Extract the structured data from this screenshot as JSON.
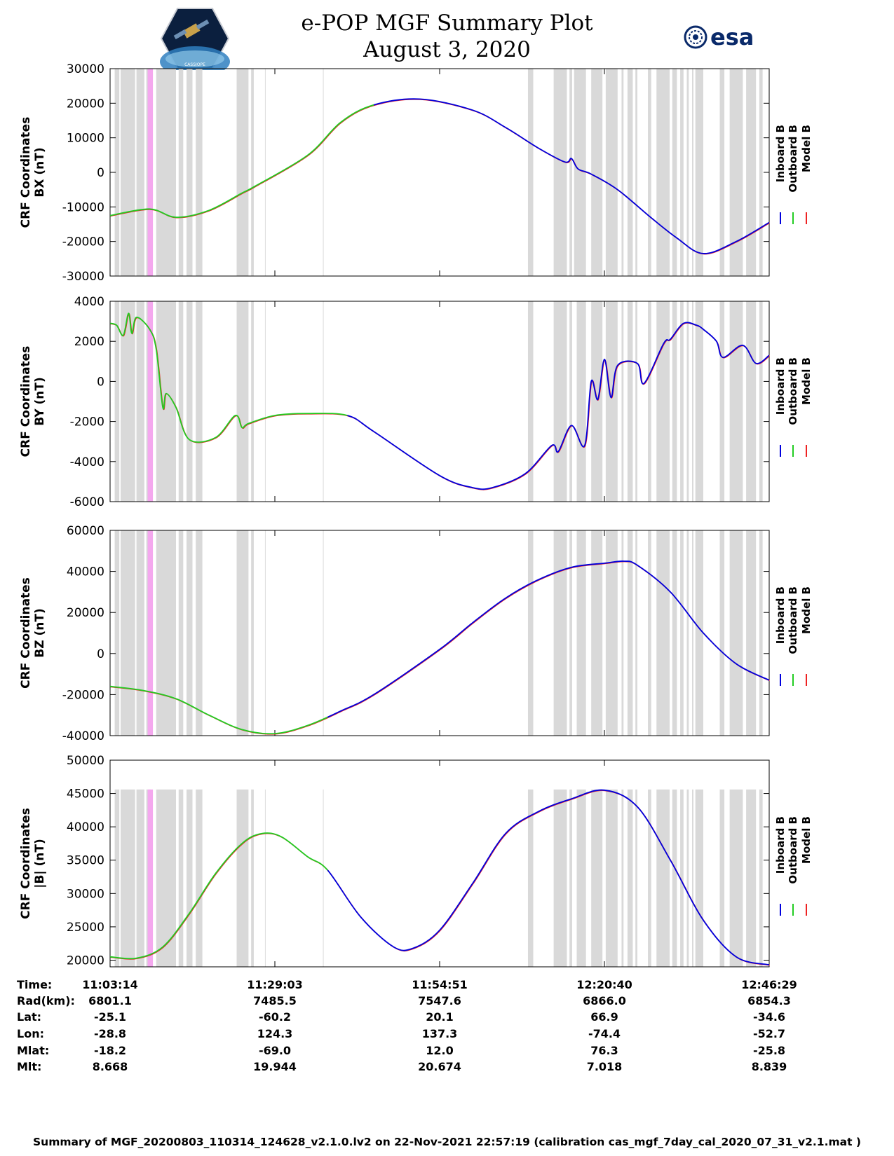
{
  "header": {
    "title": "e-POP MGF Summary Plot",
    "subtitle": "August 3, 2020",
    "left_logo": "CASSIOPE",
    "right_logo": "esa"
  },
  "footer": "Summary of MGF_20200803_110314_124628_v2.1.0.lv2 on 22-Nov-2021 22:57:19 (calibration cas_mgf_7day_cal_2020_07_31_v2.1.mat )",
  "colors": {
    "inboard": "#0000dd",
    "outboard": "#22cc22",
    "model": "#ee2222",
    "gap": "#d9d9d9",
    "highlight": "#f4a8ee"
  },
  "legend": [
    "Inboard B",
    "Outboard B",
    "Model B"
  ],
  "ephemeris": {
    "labels": [
      "Time:",
      "Rad(km):",
      "Lat:",
      "Lon:",
      "Mlat:",
      "Mlt:"
    ],
    "columns": [
      [
        "11:03:14",
        "6801.1",
        "-25.1",
        "-28.8",
        "-18.2",
        "8.668"
      ],
      [
        "11:29:03",
        "7485.5",
        "-60.2",
        "124.3",
        "-69.0",
        "19.944"
      ],
      [
        "11:54:51",
        "7547.6",
        "20.1",
        "137.3",
        "12.0",
        "20.674"
      ],
      [
        "12:20:40",
        "6866.0",
        "66.9",
        "-74.4",
        "76.3",
        "7.018"
      ],
      [
        "12:46:29",
        "6854.3",
        "-34.6",
        "-52.7",
        "-25.8",
        "8.839"
      ]
    ]
  },
  "chart_data": [
    {
      "type": "line",
      "ylabel": [
        "CRF Coordinates",
        "BX (nT)"
      ],
      "xlim": [
        0,
        1
      ],
      "ylim": [
        -30000,
        30000
      ],
      "yticks": [
        -30000,
        -20000,
        -10000,
        0,
        10000,
        20000,
        30000
      ],
      "x_tick_labels": [
        "11:03:14",
        "11:29:03",
        "11:54:51",
        "12:20:40",
        "12:46:29"
      ],
      "green_end": 0.4,
      "series": [
        {
          "name": "Inboard B",
          "x": [
            0,
            0.06,
            0.1,
            0.15,
            0.2,
            0.22,
            0.3,
            0.35,
            0.4,
            0.47,
            0.55,
            0.6,
            0.65,
            0.69,
            0.7,
            0.71,
            0.73,
            0.77,
            0.82,
            0.86,
            0.9,
            0.95,
            1.0
          ],
          "y": [
            -12500,
            -10600,
            -13000,
            -11000,
            -6000,
            -4000,
            5000,
            14500,
            19500,
            21200,
            18000,
            13000,
            7000,
            3000,
            4000,
            1000,
            -500,
            -5000,
            -13000,
            -19000,
            -23500,
            -20000,
            -14500
          ]
        },
        {
          "name": "Model B",
          "x": [
            0,
            0.5,
            1.0
          ],
          "y": [
            -12500,
            21000,
            -14500
          ]
        }
      ],
      "gaps": [
        [
          0.007,
          0.014
        ],
        [
          0.016,
          0.038
        ],
        [
          0.04,
          0.052
        ],
        [
          0.055,
          0.062
        ],
        [
          0.07,
          0.1
        ],
        [
          0.104,
          0.111
        ],
        [
          0.116,
          0.125
        ],
        [
          0.13,
          0.14
        ],
        [
          0.192,
          0.21
        ],
        [
          0.214,
          0.218
        ],
        [
          0.235,
          0.236
        ],
        [
          0.323,
          0.324
        ],
        [
          0.634,
          0.642
        ],
        [
          0.673,
          0.693
        ],
        [
          0.697,
          0.701
        ],
        [
          0.705,
          0.7
        ],
        [
          0.705,
          0.71
        ],
        [
          0.704,
          0.706
        ],
        [
          0.708,
          0.722
        ],
        [
          0.73,
          0.747
        ],
        [
          0.752,
          0.77
        ],
        [
          0.776,
          0.779
        ],
        [
          0.785,
          0.793
        ],
        [
          0.797,
          0.8
        ],
        [
          0.816,
          0.821
        ],
        [
          0.829,
          0.849
        ],
        [
          0.853,
          0.86
        ],
        [
          0.865,
          0.87
        ],
        [
          0.875,
          0.878
        ],
        [
          0.883,
          0.885
        ],
        [
          0.888,
          0.9
        ],
        [
          0.925,
          0.932
        ],
        [
          0.94,
          0.96
        ],
        [
          0.965,
          0.98
        ],
        [
          0.985,
          0.99
        ]
      ],
      "highlights": [
        [
          0.057,
          0.065
        ]
      ]
    },
    {
      "type": "line",
      "ylabel": [
        "CRF Coordinates",
        "BY (nT)"
      ],
      "xlim": [
        0,
        1
      ],
      "ylim": [
        -6000,
        4000
      ],
      "yticks": [
        -6000,
        -4000,
        -2000,
        0,
        2000,
        4000
      ],
      "x_tick_labels": [
        "11:03:14",
        "11:29:03",
        "11:54:51",
        "12:20:40",
        "12:46:29"
      ],
      "green_end": 0.36,
      "series": [
        {
          "name": "Inboard B",
          "x": [
            0,
            0.01,
            0.02,
            0.028,
            0.033,
            0.04,
            0.06,
            0.07,
            0.08,
            0.085,
            0.1,
            0.12,
            0.16,
            0.19,
            0.2,
            0.21,
            0.25,
            0.3,
            0.36,
            0.4,
            0.5,
            0.55,
            0.58,
            0.63,
            0.67,
            0.68,
            0.7,
            0.72,
            0.73,
            0.74,
            0.75,
            0.76,
            0.77,
            0.8,
            0.81,
            0.84,
            0.85,
            0.87,
            0.89,
            0.9,
            0.92,
            0.93,
            0.96,
            0.98,
            1.0
          ],
          "y": [
            2900,
            2800,
            2300,
            3400,
            2400,
            3200,
            2600,
            1600,
            -1300,
            -600,
            -1300,
            -2900,
            -2800,
            -1700,
            -2300,
            -2100,
            -1700,
            -1600,
            -1700,
            -2500,
            -4700,
            -5300,
            -5300,
            -4600,
            -3200,
            -3500,
            -2200,
            -3200,
            0,
            -900,
            1100,
            -800,
            800,
            900,
            -100,
            1900,
            2100,
            2900,
            2800,
            2600,
            2000,
            1200,
            1800,
            900,
            1300
          ]
        },
        {
          "name": "Model B",
          "x": [
            0,
            0.5,
            1.0
          ],
          "y": [
            2900,
            -4700,
            1300
          ]
        }
      ],
      "gaps": [
        [
          0.007,
          0.014
        ],
        [
          0.016,
          0.038
        ],
        [
          0.04,
          0.052
        ],
        [
          0.055,
          0.062
        ],
        [
          0.07,
          0.1
        ],
        [
          0.104,
          0.111
        ],
        [
          0.116,
          0.125
        ],
        [
          0.13,
          0.14
        ],
        [
          0.192,
          0.21
        ],
        [
          0.214,
          0.218
        ],
        [
          0.235,
          0.236
        ],
        [
          0.323,
          0.324
        ],
        [
          0.634,
          0.642
        ],
        [
          0.673,
          0.693
        ],
        [
          0.697,
          0.701
        ],
        [
          0.708,
          0.722
        ],
        [
          0.73,
          0.747
        ],
        [
          0.752,
          0.77
        ],
        [
          0.776,
          0.779
        ],
        [
          0.785,
          0.793
        ],
        [
          0.797,
          0.8
        ],
        [
          0.816,
          0.821
        ],
        [
          0.829,
          0.849
        ],
        [
          0.853,
          0.86
        ],
        [
          0.865,
          0.87
        ],
        [
          0.875,
          0.878
        ],
        [
          0.883,
          0.885
        ],
        [
          0.888,
          0.9
        ],
        [
          0.925,
          0.932
        ],
        [
          0.94,
          0.96
        ],
        [
          0.965,
          0.98
        ],
        [
          0.985,
          0.99
        ]
      ],
      "highlights": [
        [
          0.057,
          0.065
        ]
      ]
    },
    {
      "type": "line",
      "ylabel": [
        "CRF Coordinates",
        "BZ (nT)"
      ],
      "xlim": [
        0,
        1
      ],
      "ylim": [
        -40000,
        60000
      ],
      "yticks": [
        -40000,
        -20000,
        0,
        20000,
        40000,
        60000
      ],
      "x_tick_labels": [
        "11:03:14",
        "11:29:03",
        "11:54:51",
        "12:20:40",
        "12:46:29"
      ],
      "green_end": 0.33,
      "series": [
        {
          "name": "Inboard B",
          "x": [
            0,
            0.05,
            0.1,
            0.15,
            0.2,
            0.25,
            0.3,
            0.35,
            0.4,
            0.5,
            0.55,
            0.6,
            0.65,
            0.7,
            0.75,
            0.78,
            0.8,
            0.85,
            0.9,
            0.95,
            1.0
          ],
          "y": [
            -16000,
            -18000,
            -22000,
            -30000,
            -37000,
            -39000,
            -35000,
            -28000,
            -20000,
            2000,
            15000,
            27000,
            36000,
            42000,
            44000,
            45000,
            43000,
            30000,
            10000,
            -5000,
            -13000
          ]
        },
        {
          "name": "Model B",
          "x": [
            0,
            0.5,
            1.0
          ],
          "y": [
            -16000,
            2000,
            -13000
          ]
        }
      ],
      "gaps": [
        [
          0.007,
          0.014
        ],
        [
          0.016,
          0.038
        ],
        [
          0.04,
          0.052
        ],
        [
          0.055,
          0.062
        ],
        [
          0.07,
          0.1
        ],
        [
          0.104,
          0.111
        ],
        [
          0.116,
          0.125
        ],
        [
          0.13,
          0.14
        ],
        [
          0.192,
          0.21
        ],
        [
          0.214,
          0.218
        ],
        [
          0.235,
          0.236
        ],
        [
          0.323,
          0.324
        ],
        [
          0.634,
          0.642
        ],
        [
          0.673,
          0.693
        ],
        [
          0.697,
          0.701
        ],
        [
          0.708,
          0.722
        ],
        [
          0.73,
          0.747
        ],
        [
          0.752,
          0.77
        ],
        [
          0.776,
          0.779
        ],
        [
          0.785,
          0.793
        ],
        [
          0.797,
          0.8
        ],
        [
          0.816,
          0.821
        ],
        [
          0.829,
          0.849
        ],
        [
          0.853,
          0.86
        ],
        [
          0.865,
          0.87
        ],
        [
          0.875,
          0.878
        ],
        [
          0.883,
          0.885
        ],
        [
          0.888,
          0.9
        ],
        [
          0.925,
          0.932
        ],
        [
          0.94,
          0.96
        ],
        [
          0.965,
          0.98
        ],
        [
          0.985,
          0.99
        ]
      ],
      "highlights": [
        [
          0.057,
          0.065
        ]
      ]
    },
    {
      "type": "line",
      "ylabel": [
        "CRF Coordinates",
        "|B| (nT)"
      ],
      "xlim": [
        0,
        1
      ],
      "ylim": [
        19000,
        50000
      ],
      "yticks": [
        20000,
        25000,
        30000,
        35000,
        40000,
        45000,
        50000
      ],
      "x_tick_labels": [
        "11:03:14",
        "11:29:03",
        "11:54:51",
        "12:20:40",
        "12:46:29"
      ],
      "green_end": 0.33,
      "series": [
        {
          "name": "Inboard B",
          "x": [
            0,
            0.04,
            0.08,
            0.12,
            0.16,
            0.2,
            0.23,
            0.26,
            0.3,
            0.33,
            0.38,
            0.43,
            0.46,
            0.5,
            0.55,
            0.6,
            0.65,
            0.7,
            0.75,
            0.8,
            0.85,
            0.9,
            0.95,
            1.0
          ],
          "y": [
            20500,
            20300,
            22000,
            27000,
            33000,
            37500,
            39000,
            38500,
            35500,
            33500,
            26500,
            22000,
            21800,
            24500,
            31500,
            39000,
            42300,
            44200,
            45500,
            43000,
            35000,
            26000,
            20500,
            19300
          ]
        },
        {
          "name": "Model B",
          "x": [
            0,
            0.5,
            1.0
          ],
          "y": [
            20500,
            24500,
            19300
          ]
        }
      ],
      "gaps": [
        [
          0.007,
          0.014
        ],
        [
          0.016,
          0.038
        ],
        [
          0.04,
          0.052
        ],
        [
          0.055,
          0.062
        ],
        [
          0.07,
          0.1
        ],
        [
          0.104,
          0.111
        ],
        [
          0.116,
          0.125
        ],
        [
          0.13,
          0.14
        ],
        [
          0.192,
          0.21
        ],
        [
          0.214,
          0.218
        ],
        [
          0.235,
          0.236
        ],
        [
          0.323,
          0.324
        ],
        [
          0.634,
          0.642
        ],
        [
          0.673,
          0.693
        ],
        [
          0.697,
          0.701
        ],
        [
          0.708,
          0.722
        ],
        [
          0.73,
          0.747
        ],
        [
          0.752,
          0.77
        ],
        [
          0.776,
          0.779
        ],
        [
          0.785,
          0.793
        ],
        [
          0.797,
          0.8
        ],
        [
          0.816,
          0.821
        ],
        [
          0.829,
          0.849
        ],
        [
          0.853,
          0.86
        ],
        [
          0.865,
          0.87
        ],
        [
          0.875,
          0.878
        ],
        [
          0.883,
          0.885
        ],
        [
          0.888,
          0.9
        ],
        [
          0.925,
          0.932
        ],
        [
          0.94,
          0.96
        ],
        [
          0.965,
          0.98
        ],
        [
          0.985,
          0.99
        ]
      ],
      "gap_top": 45600,
      "highlights": [
        [
          0.057,
          0.065
        ]
      ]
    }
  ]
}
